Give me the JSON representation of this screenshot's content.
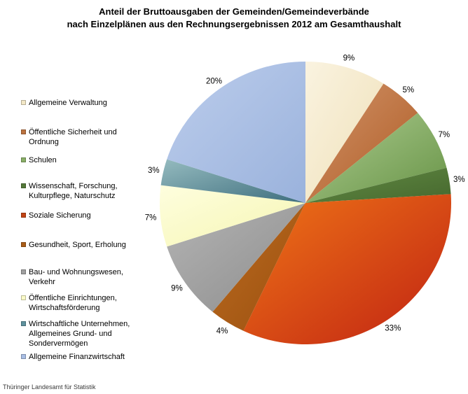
{
  "title": {
    "line1": "Anteil der Bruttoausgaben der Gemeinden/Gemeindeverbände",
    "line2": "nach Einzelplänen aus den Rechnungsergebnissen 2012 am Gesamthaushalt"
  },
  "footer": {
    "source": "Thüringer Landesamt für Statistik"
  },
  "chart_data": {
    "type": "pie",
    "title": "Anteil der Bruttoausgaben der Gemeinden/Gemeindeverbände nach Einzelplänen aus den Rechnungsergebnissen 2012 am Gesamthaushalt",
    "unit": "%",
    "start_angle_deg": 0,
    "direction": "clockwise",
    "legend_position": "left",
    "labels_position": "outside",
    "total": 100,
    "slices": [
      {
        "label": "Allgemeine Verwaltung",
        "value": 9,
        "color": "#F3E8C7",
        "color_light": "#FAF3E0",
        "color_dark": "#EFE0B8"
      },
      {
        "label": "Öffentliche Sicherheit und Ordnung",
        "value": 5,
        "color": "#BC7340",
        "color_light": "#D2946A",
        "color_dark": "#AE5B24"
      },
      {
        "label": "Schulen",
        "value": 7,
        "color": "#8AAF67",
        "color_light": "#ADCC90",
        "color_dark": "#679346"
      },
      {
        "label": "Wissenschaft, Forschung, Kulturpflege, Naturschutz",
        "value": 3,
        "color": "#547939",
        "color_light": "#628B44",
        "color_dark": "#46682E"
      },
      {
        "label": "Soziale Sicherung",
        "value": 33,
        "color": "#C34414",
        "color_light": "#EF7517",
        "color_dark": "#C02213"
      },
      {
        "label": "Gesundheit, Sport, Erholung",
        "value": 4,
        "color": "#AA5D18",
        "color_light": "#BC6C1F",
        "color_dark": "#9A4F10"
      },
      {
        "label": "Bau- und Wohnungswesen, Verkehr",
        "value": 9,
        "color": "#A0A0A0",
        "color_light": "#B4B4B4",
        "color_dark": "#8D8D8D"
      },
      {
        "label": "Öffentliche Einrichtungen, Wirtschaftsförderung",
        "value": 7,
        "color": "#FAFAC8",
        "color_light": "#FEFEDE",
        "color_dark": "#F5F5B2"
      },
      {
        "label": "Wirtschaftliche Unternehmen, Allgemeines Grund- und Sondervermögen",
        "value": 3,
        "color": "#5F929E",
        "color_light": "#95BBBF",
        "color_dark": "#3E6E7E"
      },
      {
        "label": "Allgemeine Finanzwirtschaft",
        "value": 20,
        "color": "#A9BEE4",
        "color_light": "#BCCDEC",
        "color_dark": "#9AB2DC"
      }
    ]
  }
}
